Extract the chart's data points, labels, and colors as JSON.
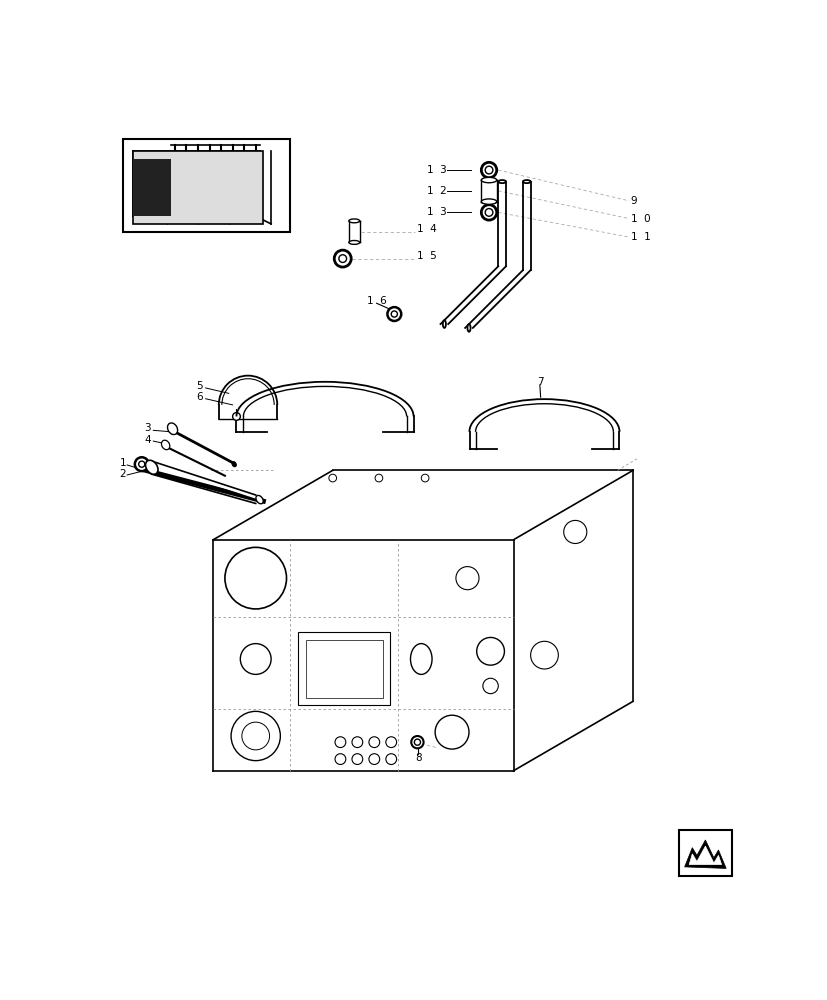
{
  "bg_color": "#ffffff",
  "lc": "#000000",
  "fig_width": 8.28,
  "fig_height": 10.0
}
